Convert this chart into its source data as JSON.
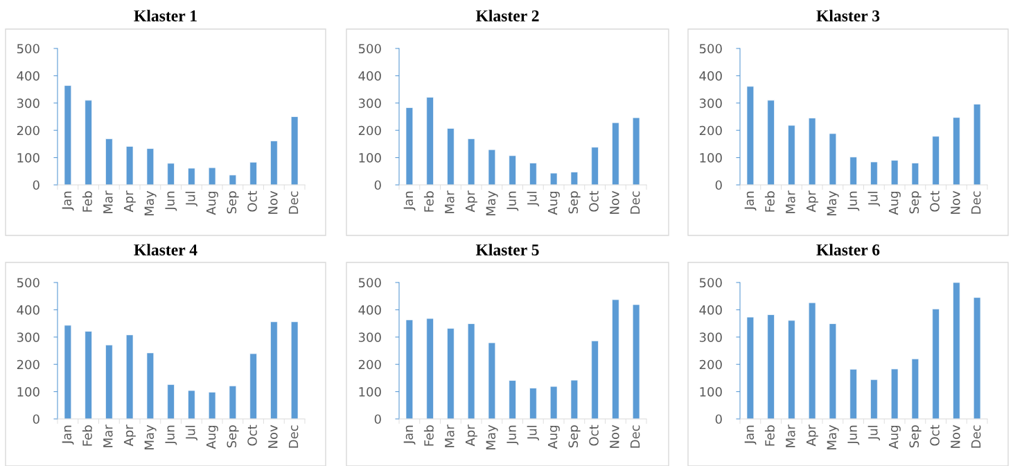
{
  "chart_data": [
    {
      "type": "bar",
      "title": "Klaster 1",
      "categories": [
        "Jan",
        "Feb",
        "Mar",
        "Apr",
        "May",
        "Jun",
        "Jul",
        "Aug",
        "Sep",
        "Oct",
        "Nov",
        "Dec"
      ],
      "values": [
        364,
        310,
        169,
        141,
        133,
        79,
        61,
        63,
        36,
        83,
        161,
        250
      ],
      "color": "#5b9bd5",
      "ylim": [
        0,
        500
      ],
      "yticks": [
        0,
        100,
        200,
        300,
        400,
        500
      ],
      "grid": false,
      "legend": false
    },
    {
      "type": "bar",
      "title": "Klaster 2",
      "categories": [
        "Jan",
        "Feb",
        "Mar",
        "Apr",
        "May",
        "Jun",
        "Jul",
        "Aug",
        "Sep",
        "Oct",
        "Nov",
        "Dec"
      ],
      "values": [
        283,
        321,
        207,
        169,
        129,
        107,
        80,
        43,
        47,
        138,
        228,
        246
      ],
      "color": "#5b9bd5",
      "ylim": [
        0,
        500
      ],
      "yticks": [
        0,
        100,
        200,
        300,
        400,
        500
      ],
      "grid": false,
      "legend": false
    },
    {
      "type": "bar",
      "title": "Klaster 3",
      "categories": [
        "Jan",
        "Feb",
        "Mar",
        "Apr",
        "May",
        "Jun",
        "Jul",
        "Aug",
        "Sep",
        "Oct",
        "Nov",
        "Dec"
      ],
      "values": [
        361,
        310,
        218,
        245,
        188,
        102,
        84,
        90,
        80,
        178,
        247,
        296
      ],
      "color": "#5b9bd5",
      "ylim": [
        0,
        500
      ],
      "yticks": [
        0,
        100,
        200,
        300,
        400,
        500
      ],
      "grid": false,
      "legend": false
    },
    {
      "type": "bar",
      "title": "Klaster 4",
      "categories": [
        "Jan",
        "Feb",
        "Mar",
        "Apr",
        "May",
        "Jun",
        "Jul",
        "Aug",
        "Sep",
        "Oct",
        "Nov",
        "Dec"
      ],
      "values": [
        343,
        321,
        271,
        308,
        242,
        126,
        104,
        98,
        121,
        239,
        356,
        356
      ],
      "color": "#5b9bd5",
      "ylim": [
        0,
        500
      ],
      "yticks": [
        0,
        100,
        200,
        300,
        400,
        500
      ],
      "grid": false,
      "legend": false
    },
    {
      "type": "bar",
      "title": "Klaster 5",
      "categories": [
        "Jan",
        "Feb",
        "Mar",
        "Apr",
        "May",
        "Jun",
        "Jul",
        "Aug",
        "Sep",
        "Oct",
        "Nov",
        "Dec"
      ],
      "values": [
        363,
        368,
        332,
        349,
        279,
        141,
        113,
        119,
        142,
        286,
        437,
        419
      ],
      "color": "#5b9bd5",
      "ylim": [
        0,
        500
      ],
      "yticks": [
        0,
        100,
        200,
        300,
        400,
        500
      ],
      "grid": false,
      "legend": false
    },
    {
      "type": "bar",
      "title": "Klaster 6",
      "categories": [
        "Jan",
        "Feb",
        "Mar",
        "Apr",
        "May",
        "Jun",
        "Jul",
        "Aug",
        "Sep",
        "Oct",
        "Nov",
        "Dec"
      ],
      "values": [
        373,
        382,
        361,
        426,
        349,
        182,
        144,
        183,
        220,
        403,
        500,
        445
      ],
      "color": "#5b9bd5",
      "ylim": [
        0,
        500
      ],
      "yticks": [
        0,
        100,
        200,
        300,
        400,
        500
      ],
      "grid": false,
      "legend": false
    }
  ]
}
